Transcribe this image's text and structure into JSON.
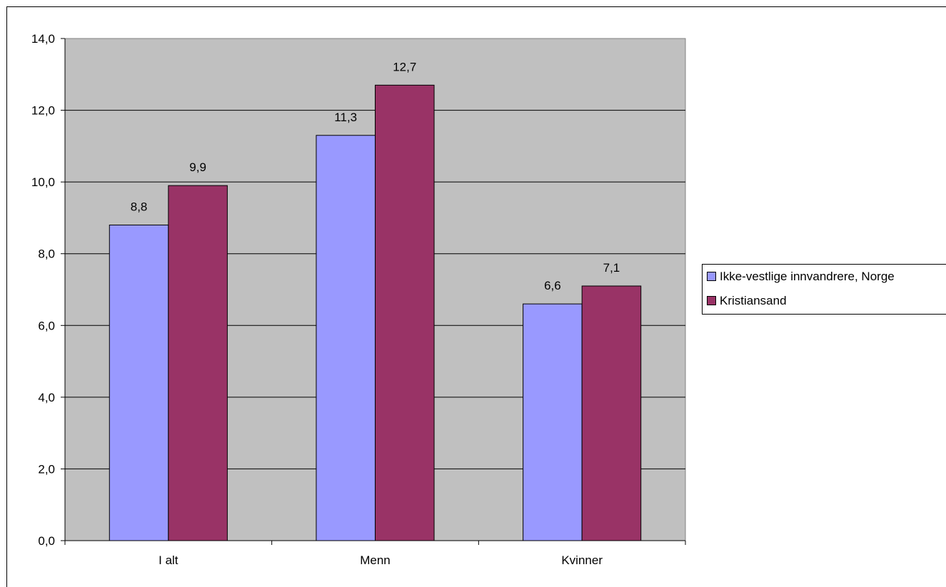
{
  "colors": {
    "plot_bg": "#c0c0c0",
    "series1": "#9999ff",
    "series2": "#993366"
  },
  "legend": {
    "items": [
      {
        "label": "Ikke-vestlige innvandrere, Norge",
        "color": "#9999ff"
      },
      {
        "label": "Kristiansand",
        "color": "#993366"
      }
    ]
  },
  "chart_data": {
    "type": "bar",
    "categories": [
      "I alt",
      "Menn",
      "Kvinner"
    ],
    "series": [
      {
        "name": "Ikke-vestlige innvandrere, Norge",
        "values": [
          8.8,
          11.3,
          6.6
        ],
        "labels": [
          "8,8",
          "11,3",
          "6,6"
        ]
      },
      {
        "name": "Kristiansand",
        "values": [
          9.9,
          12.7,
          7.1
        ],
        "labels": [
          "9,9",
          "12,7",
          "7,1"
        ]
      }
    ],
    "y_ticks": [
      "0,0",
      "2,0",
      "4,0",
      "6,0",
      "8,0",
      "10,0",
      "12,0",
      "14,0"
    ],
    "ylim": [
      0,
      14
    ],
    "grid": true,
    "legend_position": "right",
    "title": "",
    "xlabel": "",
    "ylabel": ""
  }
}
